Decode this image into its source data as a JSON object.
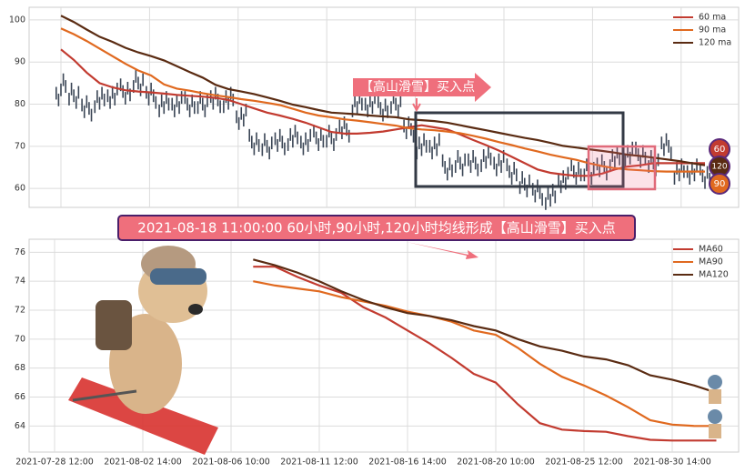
{
  "chart_data": [
    {
      "type": "candlestick",
      "values": [
        85,
        82,
        79,
        81,
        82,
        83,
        85,
        82,
        80,
        80,
        80,
        80,
        81,
        81,
        77,
        71,
        70,
        71,
        72,
        71,
        72,
        72,
        74,
        80,
        80,
        79,
        80,
        74,
        70,
        70,
        65,
        66,
        66,
        67,
        66,
        64,
        61,
        59,
        58,
        62,
        64,
        64,
        65,
        67,
        68,
        68,
        66,
        70,
        64,
        64,
        63
      ],
      "color": "#3a4555",
      "series": [
        {
          "name": "60 ma",
          "color": "#c23b30",
          "values": [
            93,
            90.5,
            87.5,
            85,
            84,
            83.3,
            83,
            82.8,
            82.5,
            82.2,
            82,
            81.8,
            81.5,
            81,
            80,
            79,
            78,
            77.3,
            76.5,
            75.6,
            74.5,
            73.4,
            73,
            73,
            73.2,
            73.5,
            74,
            74.5,
            75,
            74.5,
            74,
            72.8,
            71.5,
            70.3,
            69,
            67.5,
            66,
            64.5,
            63.7,
            63.3,
            63,
            63,
            63.5,
            64.5,
            65.2,
            65.5,
            66,
            66,
            66,
            66,
            66
          ]
        },
        {
          "name": "90 ma",
          "color": "#e0691f",
          "values": [
            98,
            96.6,
            95,
            93.2,
            91.4,
            89.6,
            88,
            86.8,
            84.7,
            83.7,
            83.2,
            82.6,
            82.1,
            81.7,
            81.2,
            80.8,
            80.3,
            79.8,
            78.9,
            78,
            77.3,
            76.9,
            76.4,
            76.1,
            75.7,
            75.3,
            74.9,
            74.3,
            74,
            73.8,
            73.5,
            73.1,
            72.5,
            71.8,
            71,
            70.3,
            69.5,
            68.8,
            68,
            67.4,
            66.8,
            66,
            65.3,
            64.8,
            64.5,
            64.3,
            64.1,
            64,
            64,
            64,
            64
          ]
        },
        {
          "name": "120 ma",
          "color": "#5a2b12",
          "values": [
            101,
            99.5,
            97.7,
            96,
            94.8,
            93.4,
            92.3,
            91.4,
            90.4,
            89,
            87.6,
            86.3,
            84.6,
            83.6,
            83,
            82.4,
            81.6,
            80.8,
            79.9,
            79.3,
            78.6,
            78,
            77.8,
            77.6,
            77.3,
            77.1,
            76.9,
            76.4,
            76.2,
            76,
            75.6,
            75,
            74.4,
            73.8,
            73.2,
            72.6,
            72,
            71.5,
            70.8,
            70.1,
            69.7,
            69.3,
            68.9,
            68.5,
            68,
            67.7,
            67.3,
            66.9,
            66.5,
            66,
            65.5
          ]
        }
      ],
      "ylim": [
        55.5,
        103
      ],
      "yticks": [
        60,
        70,
        80,
        90,
        100
      ],
      "grid": true,
      "legend": "upper right",
      "annotation": "【高山滑雪】买入点",
      "end_labels": [
        "60",
        "120",
        "90"
      ]
    },
    {
      "type": "line",
      "categories": [
        "2021-07-28 12:00",
        null,
        null,
        null,
        "2021-08-02 14:00",
        null,
        null,
        null,
        "2021-08-06 10:00",
        null,
        null,
        null,
        "2021-08-11 12:00",
        null,
        null,
        null,
        "2021-08-16 14:00",
        null,
        null,
        null,
        "2021-08-20 10:00",
        null,
        null,
        null,
        "2021-08-25 12:00",
        null,
        null,
        null,
        "2021-08-30 14:00",
        null,
        null
      ],
      "series": [
        {
          "name": "MA60",
          "color": "#c23b30",
          "values": [
            null,
            null,
            null,
            null,
            null,
            null,
            null,
            null,
            null,
            75,
            75,
            74.3,
            73.7,
            73.2,
            72.2,
            71.5,
            70.6,
            69.7,
            68.7,
            67.6,
            67,
            65.5,
            64.2,
            63.75,
            63.65,
            63.6,
            63.3,
            63.05,
            63,
            63,
            63
          ]
        },
        {
          "name": "MA90",
          "color": "#e0691f",
          "values": [
            null,
            null,
            null,
            null,
            null,
            null,
            null,
            null,
            null,
            74,
            73.7,
            73.5,
            73.3,
            72.9,
            72.6,
            72.3,
            71.9,
            71.6,
            71.2,
            70.6,
            70.3,
            69.4,
            68.3,
            67.4,
            66.8,
            66.1,
            65.3,
            64.4,
            64.1,
            64,
            64
          ]
        },
        {
          "name": "MA120",
          "color": "#5a2b12",
          "values": [
            null,
            null,
            null,
            null,
            null,
            null,
            null,
            null,
            null,
            75.5,
            75.1,
            74.6,
            74,
            73.3,
            72.7,
            72.2,
            71.8,
            71.6,
            71.3,
            70.9,
            70.6,
            70,
            69.5,
            69.2,
            68.8,
            68.6,
            68.2,
            67.5,
            67.2,
            66.8,
            66.3
          ]
        }
      ],
      "ylim": [
        62.2,
        76.9
      ],
      "yticks": [
        64,
        66,
        68,
        70,
        72,
        74,
        76
      ],
      "grid": true,
      "legend": "upper right"
    }
  ],
  "banner": "2021-08-18 11:00:00 60小时,90小时,120小时均线形成【高山滑雪】买入点"
}
